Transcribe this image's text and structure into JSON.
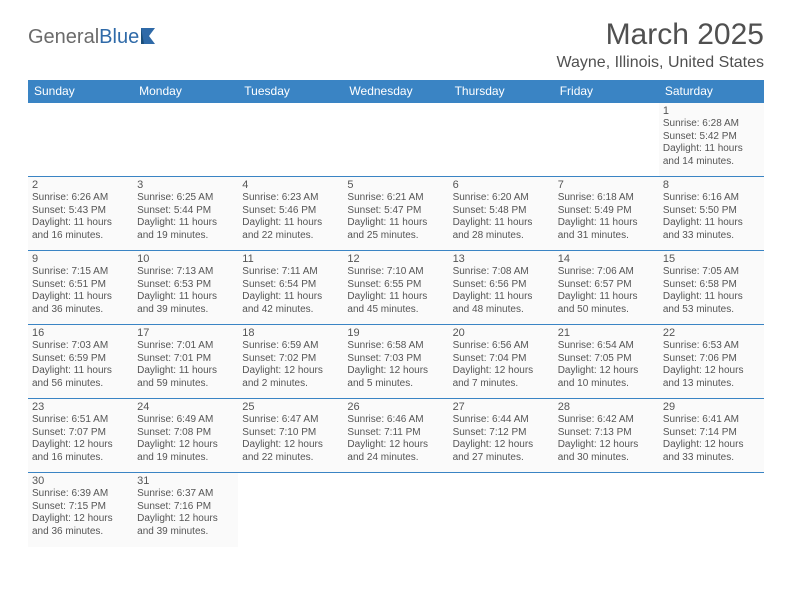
{
  "logo": {
    "text1": "General",
    "text2": "Blue",
    "text_color": "#6b6b6b",
    "accent_color": "#2f6aa8"
  },
  "header": {
    "title": "March 2025",
    "location": "Wayne, Illinois, United States"
  },
  "colors": {
    "header_bg": "#3a84c4",
    "header_fg": "#ffffff",
    "border": "#3a84c4",
    "cell_bg": "#fafafa",
    "text": "#555555"
  },
  "day_labels": [
    "Sunday",
    "Monday",
    "Tuesday",
    "Wednesday",
    "Thursday",
    "Friday",
    "Saturday"
  ],
  "weeks": [
    [
      null,
      null,
      null,
      null,
      null,
      null,
      {
        "n": "1",
        "sr": "Sunrise: 6:28 AM",
        "ss": "Sunset: 5:42 PM",
        "d1": "Daylight: 11 hours",
        "d2": "and 14 minutes."
      }
    ],
    [
      {
        "n": "2",
        "sr": "Sunrise: 6:26 AM",
        "ss": "Sunset: 5:43 PM",
        "d1": "Daylight: 11 hours",
        "d2": "and 16 minutes."
      },
      {
        "n": "3",
        "sr": "Sunrise: 6:25 AM",
        "ss": "Sunset: 5:44 PM",
        "d1": "Daylight: 11 hours",
        "d2": "and 19 minutes."
      },
      {
        "n": "4",
        "sr": "Sunrise: 6:23 AM",
        "ss": "Sunset: 5:46 PM",
        "d1": "Daylight: 11 hours",
        "d2": "and 22 minutes."
      },
      {
        "n": "5",
        "sr": "Sunrise: 6:21 AM",
        "ss": "Sunset: 5:47 PM",
        "d1": "Daylight: 11 hours",
        "d2": "and 25 minutes."
      },
      {
        "n": "6",
        "sr": "Sunrise: 6:20 AM",
        "ss": "Sunset: 5:48 PM",
        "d1": "Daylight: 11 hours",
        "d2": "and 28 minutes."
      },
      {
        "n": "7",
        "sr": "Sunrise: 6:18 AM",
        "ss": "Sunset: 5:49 PM",
        "d1": "Daylight: 11 hours",
        "d2": "and 31 minutes."
      },
      {
        "n": "8",
        "sr": "Sunrise: 6:16 AM",
        "ss": "Sunset: 5:50 PM",
        "d1": "Daylight: 11 hours",
        "d2": "and 33 minutes."
      }
    ],
    [
      {
        "n": "9",
        "sr": "Sunrise: 7:15 AM",
        "ss": "Sunset: 6:51 PM",
        "d1": "Daylight: 11 hours",
        "d2": "and 36 minutes."
      },
      {
        "n": "10",
        "sr": "Sunrise: 7:13 AM",
        "ss": "Sunset: 6:53 PM",
        "d1": "Daylight: 11 hours",
        "d2": "and 39 minutes."
      },
      {
        "n": "11",
        "sr": "Sunrise: 7:11 AM",
        "ss": "Sunset: 6:54 PM",
        "d1": "Daylight: 11 hours",
        "d2": "and 42 minutes."
      },
      {
        "n": "12",
        "sr": "Sunrise: 7:10 AM",
        "ss": "Sunset: 6:55 PM",
        "d1": "Daylight: 11 hours",
        "d2": "and 45 minutes."
      },
      {
        "n": "13",
        "sr": "Sunrise: 7:08 AM",
        "ss": "Sunset: 6:56 PM",
        "d1": "Daylight: 11 hours",
        "d2": "and 48 minutes."
      },
      {
        "n": "14",
        "sr": "Sunrise: 7:06 AM",
        "ss": "Sunset: 6:57 PM",
        "d1": "Daylight: 11 hours",
        "d2": "and 50 minutes."
      },
      {
        "n": "15",
        "sr": "Sunrise: 7:05 AM",
        "ss": "Sunset: 6:58 PM",
        "d1": "Daylight: 11 hours",
        "d2": "and 53 minutes."
      }
    ],
    [
      {
        "n": "16",
        "sr": "Sunrise: 7:03 AM",
        "ss": "Sunset: 6:59 PM",
        "d1": "Daylight: 11 hours",
        "d2": "and 56 minutes."
      },
      {
        "n": "17",
        "sr": "Sunrise: 7:01 AM",
        "ss": "Sunset: 7:01 PM",
        "d1": "Daylight: 11 hours",
        "d2": "and 59 minutes."
      },
      {
        "n": "18",
        "sr": "Sunrise: 6:59 AM",
        "ss": "Sunset: 7:02 PM",
        "d1": "Daylight: 12 hours",
        "d2": "and 2 minutes."
      },
      {
        "n": "19",
        "sr": "Sunrise: 6:58 AM",
        "ss": "Sunset: 7:03 PM",
        "d1": "Daylight: 12 hours",
        "d2": "and 5 minutes."
      },
      {
        "n": "20",
        "sr": "Sunrise: 6:56 AM",
        "ss": "Sunset: 7:04 PM",
        "d1": "Daylight: 12 hours",
        "d2": "and 7 minutes."
      },
      {
        "n": "21",
        "sr": "Sunrise: 6:54 AM",
        "ss": "Sunset: 7:05 PM",
        "d1": "Daylight: 12 hours",
        "d2": "and 10 minutes."
      },
      {
        "n": "22",
        "sr": "Sunrise: 6:53 AM",
        "ss": "Sunset: 7:06 PM",
        "d1": "Daylight: 12 hours",
        "d2": "and 13 minutes."
      }
    ],
    [
      {
        "n": "23",
        "sr": "Sunrise: 6:51 AM",
        "ss": "Sunset: 7:07 PM",
        "d1": "Daylight: 12 hours",
        "d2": "and 16 minutes."
      },
      {
        "n": "24",
        "sr": "Sunrise: 6:49 AM",
        "ss": "Sunset: 7:08 PM",
        "d1": "Daylight: 12 hours",
        "d2": "and 19 minutes."
      },
      {
        "n": "25",
        "sr": "Sunrise: 6:47 AM",
        "ss": "Sunset: 7:10 PM",
        "d1": "Daylight: 12 hours",
        "d2": "and 22 minutes."
      },
      {
        "n": "26",
        "sr": "Sunrise: 6:46 AM",
        "ss": "Sunset: 7:11 PM",
        "d1": "Daylight: 12 hours",
        "d2": "and 24 minutes."
      },
      {
        "n": "27",
        "sr": "Sunrise: 6:44 AM",
        "ss": "Sunset: 7:12 PM",
        "d1": "Daylight: 12 hours",
        "d2": "and 27 minutes."
      },
      {
        "n": "28",
        "sr": "Sunrise: 6:42 AM",
        "ss": "Sunset: 7:13 PM",
        "d1": "Daylight: 12 hours",
        "d2": "and 30 minutes."
      },
      {
        "n": "29",
        "sr": "Sunrise: 6:41 AM",
        "ss": "Sunset: 7:14 PM",
        "d1": "Daylight: 12 hours",
        "d2": "and 33 minutes."
      }
    ],
    [
      {
        "n": "30",
        "sr": "Sunrise: 6:39 AM",
        "ss": "Sunset: 7:15 PM",
        "d1": "Daylight: 12 hours",
        "d2": "and 36 minutes."
      },
      {
        "n": "31",
        "sr": "Sunrise: 6:37 AM",
        "ss": "Sunset: 7:16 PM",
        "d1": "Daylight: 12 hours",
        "d2": "and 39 minutes."
      },
      null,
      null,
      null,
      null,
      null
    ]
  ]
}
